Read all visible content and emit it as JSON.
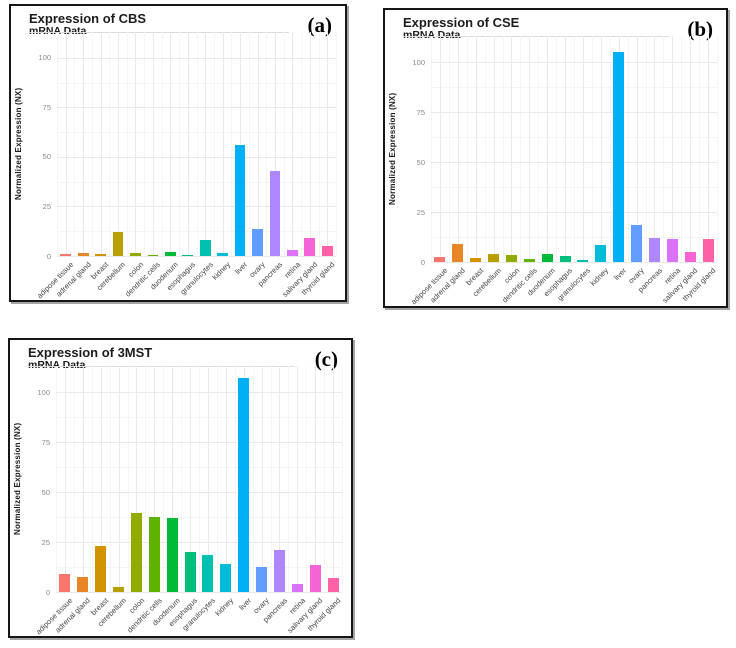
{
  "figure": {
    "background": "#ffffff",
    "panel_border_color": "#161616",
    "grid_major_color": "#e9e9e9",
    "grid_minor_color": "#f5f5f5",
    "bar_highlight_color": "#00B0F6"
  },
  "chart_data": [
    {
      "id": "a",
      "panel_label": "(a)",
      "title": "Expression of CBS",
      "subtitle": "mRNA Data",
      "type": "bar",
      "xlabel": "",
      "ylabel": "Normalized Expression (NX)",
      "yticks": [
        0,
        25,
        50,
        75,
        100
      ],
      "ylim": [
        0,
        113
      ],
      "grid": true,
      "legend": "none",
      "categories": [
        "adipose tissue",
        "adrenal gland",
        "breast",
        "cerebellum",
        "colon",
        "dendritic cells",
        "duodenum",
        "esophagus",
        "granulocytes",
        "kidney",
        "liver",
        "ovary",
        "pancreas",
        "retina",
        "salivary gland",
        "thyroid gland"
      ],
      "values": [
        1,
        1.5,
        0.8,
        12,
        1.3,
        0.4,
        1.8,
        0.7,
        8,
        1.3,
        56,
        13.5,
        43,
        3,
        9,
        5
      ],
      "colors": [
        "#F8766D",
        "#E88526",
        "#D39200",
        "#B79F00",
        "#93AA00",
        "#5EB300",
        "#00BA38",
        "#00BF7D",
        "#00C0AF",
        "#00BCD8",
        "#00B0F6",
        "#619CFF",
        "#AE87FF",
        "#DB72FB",
        "#F564D4",
        "#FF61A6"
      ]
    },
    {
      "id": "b",
      "panel_label": "(b)",
      "title": "Expression of CSE",
      "subtitle": "mRNA Data",
      "type": "bar",
      "xlabel": "",
      "ylabel": "Normalized Expression (NX)",
      "yticks": [
        0,
        25,
        50,
        75,
        100
      ],
      "ylim": [
        0,
        113
      ],
      "grid": true,
      "legend": "none",
      "categories": [
        "adipose tissue",
        "adrenal gland",
        "breast",
        "cerebellum",
        "colon",
        "dendritic cells",
        "duodenum",
        "esophagus",
        "granulocytes",
        "kidney",
        "liver",
        "ovary",
        "pancreas",
        "retina",
        "salivary gland",
        "thyroid gland"
      ],
      "values": [
        2.5,
        9,
        2,
        4,
        3.5,
        1.3,
        3.8,
        3.2,
        1,
        8.5,
        105,
        18.5,
        12,
        11.5,
        5,
        11.5
      ],
      "colors": [
        "#F8766D",
        "#E88526",
        "#D39200",
        "#B79F00",
        "#93AA00",
        "#5EB300",
        "#00BA38",
        "#00BF7D",
        "#00C0AF",
        "#00BCD8",
        "#00B0F6",
        "#619CFF",
        "#AE87FF",
        "#DB72FB",
        "#F564D4",
        "#FF61A6"
      ]
    },
    {
      "id": "c",
      "panel_label": "(c)",
      "title": "Expression of 3MST",
      "subtitle": "mRNA Data",
      "type": "bar",
      "xlabel": "",
      "ylabel": "Normalized Expression (NX)",
      "yticks": [
        0,
        25,
        50,
        75,
        100
      ],
      "ylim": [
        0,
        113
      ],
      "grid": true,
      "legend": "none",
      "categories": [
        "adipose tissue",
        "adrenal gland",
        "breast",
        "cerebellum",
        "colon",
        "dendritic cells",
        "duodenum",
        "esophagus",
        "granulocytes",
        "kidney",
        "liver",
        "ovary",
        "pancreas",
        "retina",
        "salivary gland",
        "thyroid gland"
      ],
      "values": [
        9,
        7.5,
        23,
        2.5,
        39.5,
        37.5,
        37,
        20,
        18.5,
        14,
        107,
        12.5,
        21,
        4,
        13.5,
        7
      ],
      "colors": [
        "#F8766D",
        "#E88526",
        "#D39200",
        "#B79F00",
        "#93AA00",
        "#5EB300",
        "#00BA38",
        "#00BF7D",
        "#00C0AF",
        "#00BCD8",
        "#00B0F6",
        "#619CFF",
        "#AE87FF",
        "#DB72FB",
        "#F564D4",
        "#FF61A6"
      ]
    }
  ]
}
